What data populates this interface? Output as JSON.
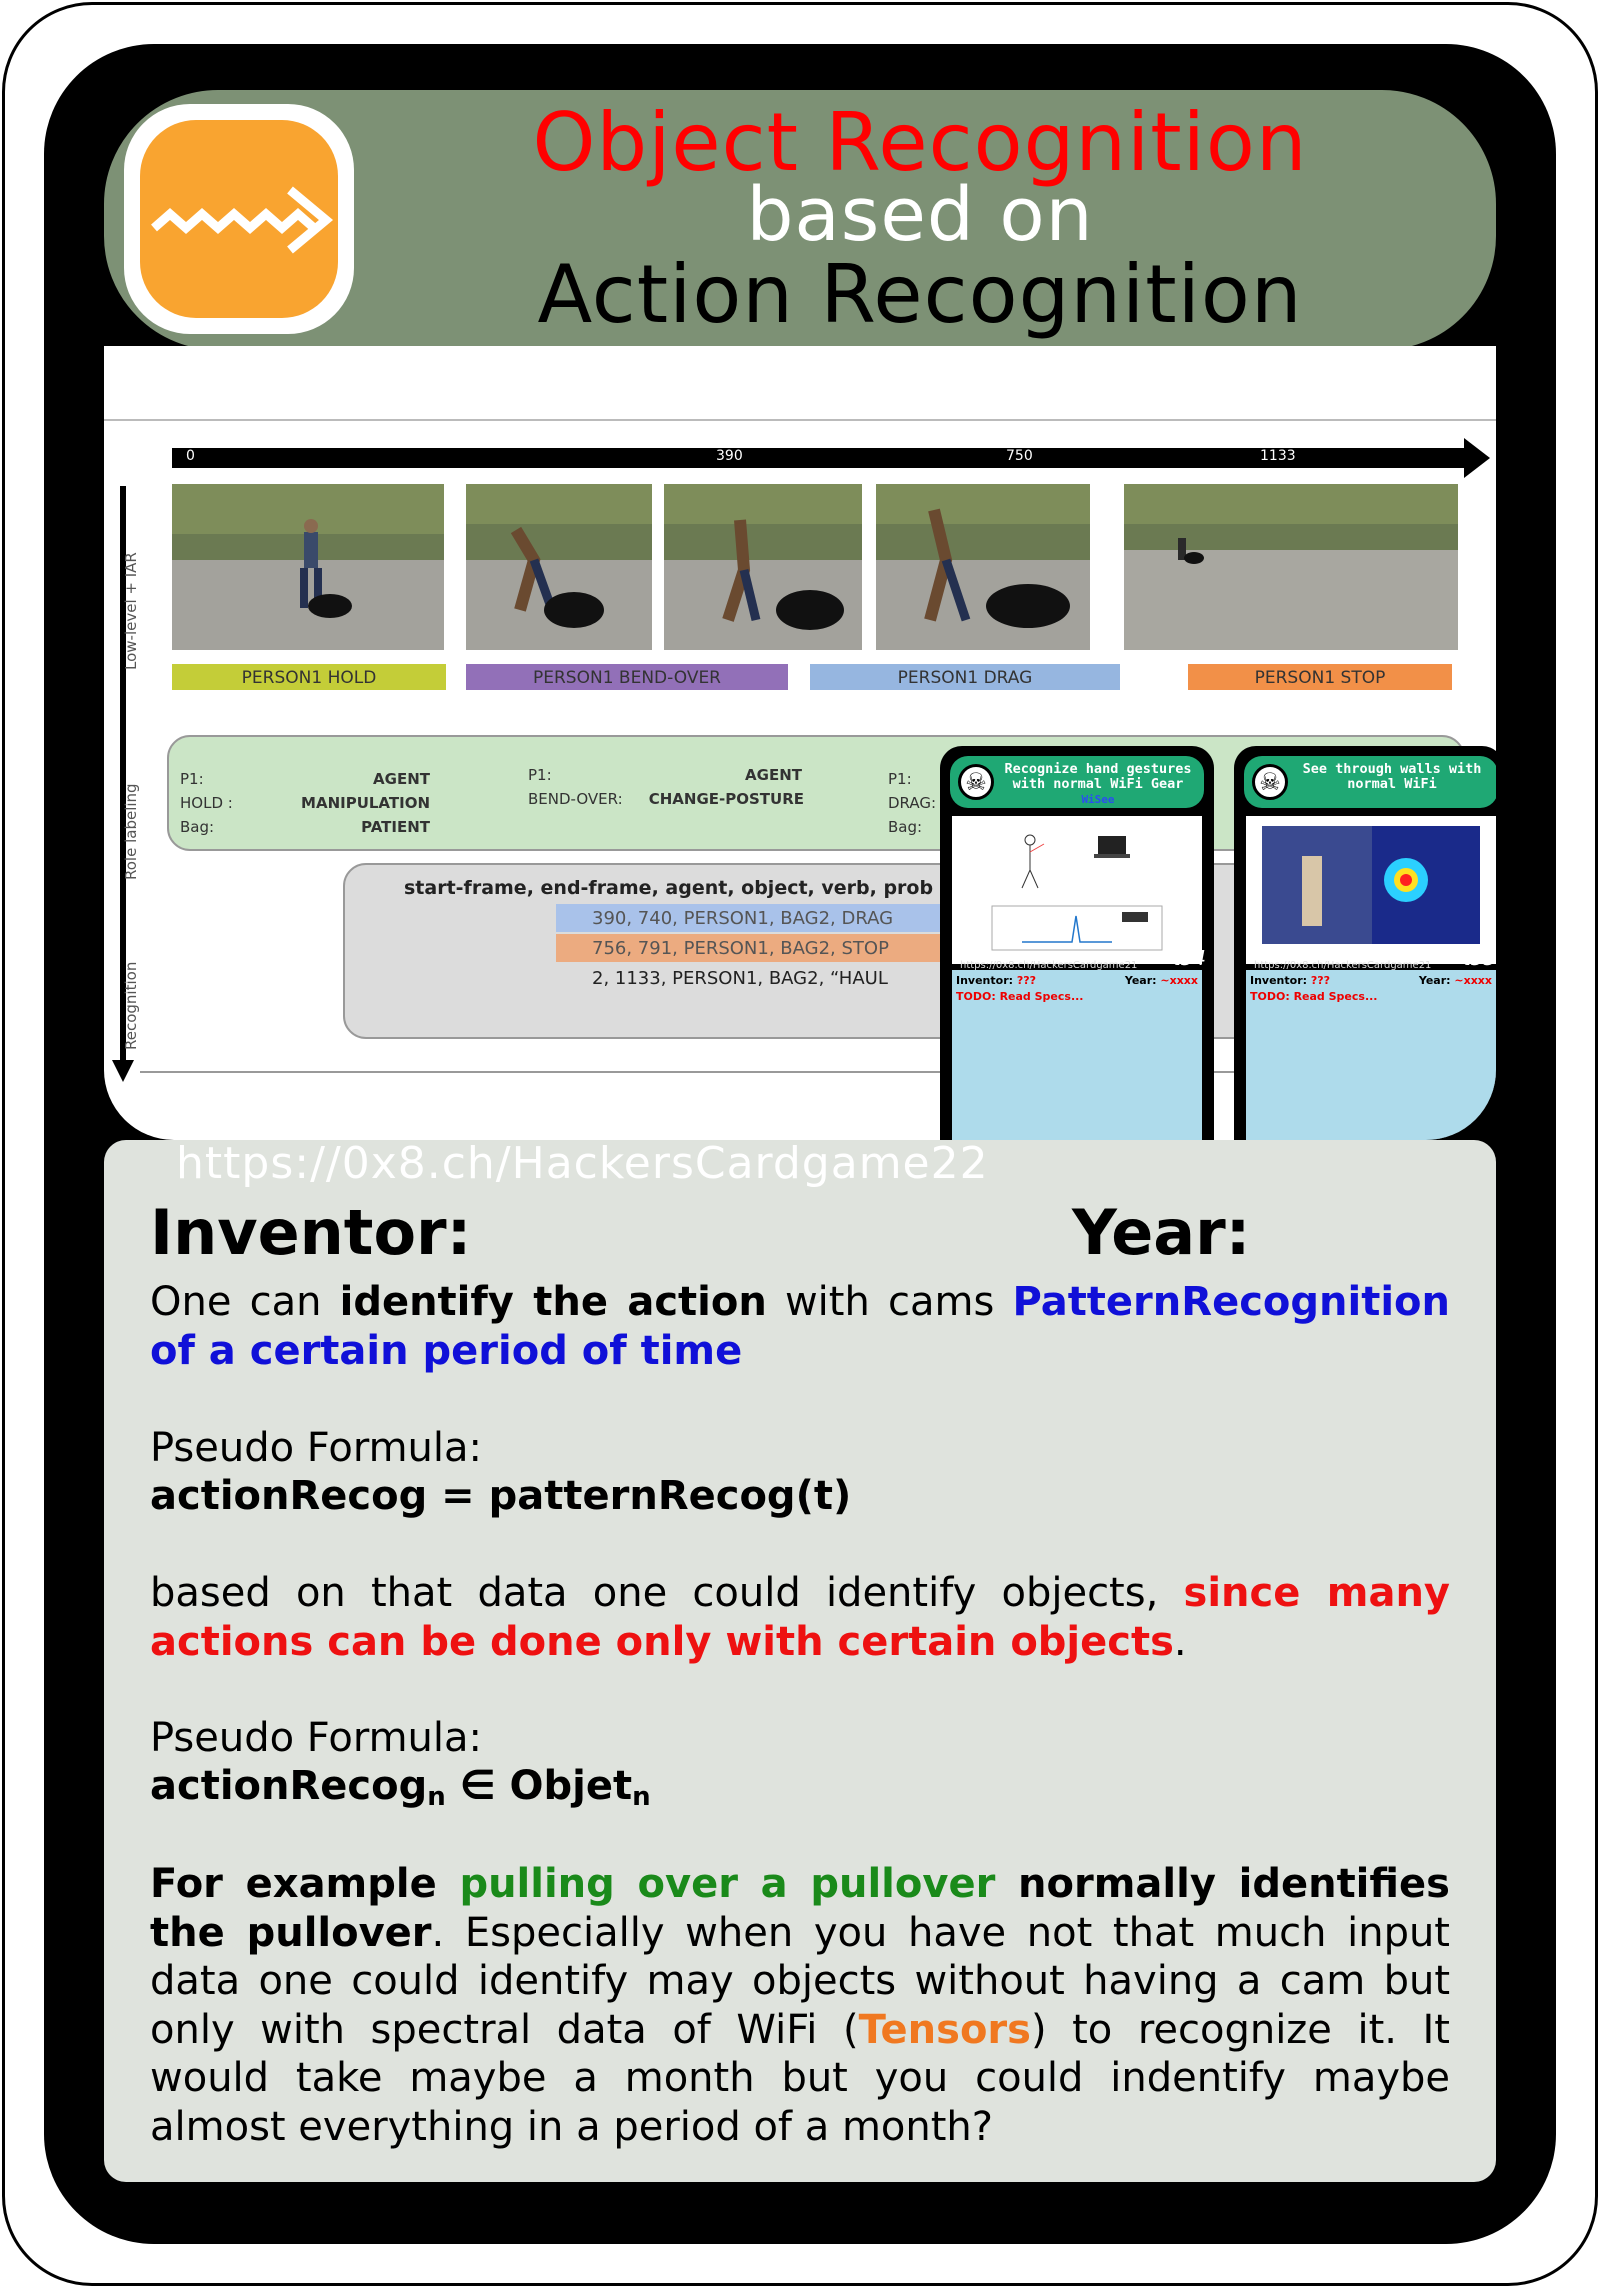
{
  "header": {
    "title_line1": "Object Recognition",
    "title_line2": "based on",
    "title_line3": "Action Recognition",
    "logo_icon": "zipper-icon",
    "colors": {
      "header_bg": "#7d9175",
      "logo_bg": "#f9a430",
      "title_accent": "#ff0000"
    }
  },
  "figure": {
    "timeline_ticks": [
      "0",
      "390",
      "750",
      "1133"
    ],
    "side_labels": [
      "Low-level + IAR",
      "Role labeling",
      "Recognition"
    ],
    "action_labels": [
      "PERSON1 HOLD",
      "PERSON1 BEND-OVER",
      "PERSON1 DRAG",
      "PERSON1 STOP"
    ],
    "role_boxes": [
      {
        "lines": [
          [
            "P1:",
            "AGENT"
          ],
          [
            "HOLD :",
            "MANIPULATION"
          ],
          [
            "Bag:",
            "PATIENT"
          ]
        ]
      },
      {
        "lines": [
          [
            "P1:",
            "AGENT"
          ],
          [
            "BEND-OVER:",
            "CHANGE-POSTURE"
          ]
        ]
      },
      {
        "lines": [
          [
            "P1:",
            ""
          ],
          [
            "DRAG:",
            ""
          ],
          [
            "Bag:",
            ""
          ]
        ]
      }
    ],
    "recognition_header": "start-frame, end-frame, agent, object, verb, prob",
    "recognition_rows": [
      "390, 740, PERSON1, BAG2, DRAG",
      "756, 791, PERSON1, BAG2, STOP",
      "2, 1133, PERSON1, BAG2, “HAUL"
    ]
  },
  "mini_cards": [
    {
      "title": "Recognize hand gestures with normal WiFi Gear",
      "subtitle": "WiSee",
      "number": "t54",
      "url": "https://0x8.ch/HackersCardgame21",
      "inventor_label": "Inventor:",
      "inventor_value": "???",
      "year_label": "Year:",
      "year_value": "~xxxx",
      "todo": "TODO: Read Specs..."
    },
    {
      "title": "See through walls with normal WiFi",
      "subtitle": "",
      "number": "t55",
      "url": "https://0x8.ch/HackersCardgame21",
      "inventor_label": "Inventor:",
      "inventor_value": "???",
      "year_label": "Year:",
      "year_value": "~xxxx",
      "todo": "TODO: Read Specs..."
    }
  ],
  "footer_url": "https://0x8.ch/HackersCardgame22",
  "info": {
    "inventor_label": "Inventor:",
    "year_label": "Year:",
    "p1_pre": "One can ",
    "p1_bold": "identify the action",
    "p1_mid": " with cams ",
    "p1_blue": "PatternRecognition of a certain period of time",
    "formula1_label": "Pseudo Formula:",
    "formula1": "actionRecog = patternRecog(t)",
    "p2_pre": "based on that data one could identify objects, ",
    "p2_red": "since many actions can be done only with certain objects",
    "p2_post": ".",
    "formula2_label": "Pseudo Formula:",
    "formula2_a": "actionRecog",
    "formula2_sub_a": "n",
    "formula2_b": " ∈ Objet",
    "formula2_sub_b": "n",
    "p3_bold1": "For example ",
    "p3_green": "pulling over a pullover",
    "p3_bold2": " normally identifies the pullover",
    "p3_mid": ". Especially when you have not that much input data one could identify may objects without having a cam but only with spectral data of WiFi (",
    "p3_orange": "Tensors",
    "p3_post": ") to recognize it. It would take maybe a month but you could indentify maybe almost everything in a period of a month?"
  }
}
